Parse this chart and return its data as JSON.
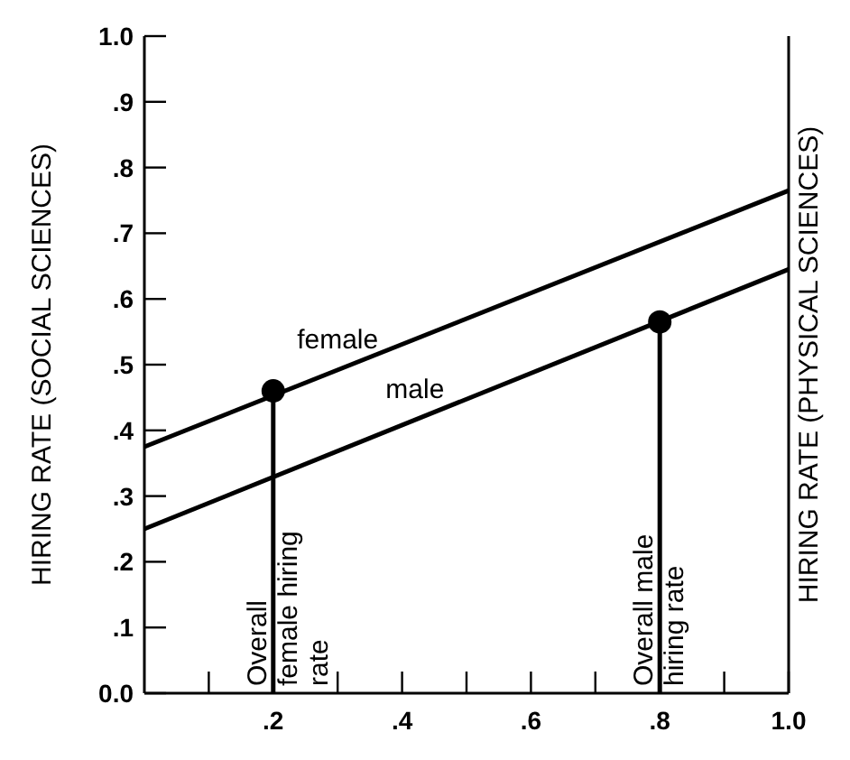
{
  "chart_data": {
    "type": "line",
    "ylabel": "HIRING RATE (SOCIAL SCIENCES)",
    "y2label": "HIRING RATE (PHYSICAL SCIENCES)",
    "xlim": [
      0,
      1
    ],
    "ylim": [
      0,
      1
    ],
    "xticks": [
      {
        "value": 0.1,
        "label": null
      },
      {
        "value": 0.2,
        "label": ".2"
      },
      {
        "value": 0.3,
        "label": null
      },
      {
        "value": 0.4,
        "label": ".4"
      },
      {
        "value": 0.5,
        "label": null
      },
      {
        "value": 0.6,
        "label": ".6"
      },
      {
        "value": 0.7,
        "label": null
      },
      {
        "value": 0.8,
        "label": ".8"
      },
      {
        "value": 0.9,
        "label": null
      },
      {
        "value": 1,
        "label": "1.0"
      }
    ],
    "yticks": [
      {
        "value": 0,
        "label": "0.0"
      },
      {
        "value": 0.1,
        "label": ".1"
      },
      {
        "value": 0.2,
        "label": ".2"
      },
      {
        "value": 0.3,
        "label": ".3"
      },
      {
        "value": 0.4,
        "label": ".4"
      },
      {
        "value": 0.5,
        "label": ".5"
      },
      {
        "value": 0.6,
        "label": ".6"
      },
      {
        "value": 0.7,
        "label": ".7"
      },
      {
        "value": 0.8,
        "label": ".8"
      },
      {
        "value": 0.9,
        "label": ".9"
      },
      {
        "value": 1,
        "label": "1.0"
      }
    ],
    "series": [
      {
        "name": "female",
        "color": "#000000",
        "x": [
          0,
          1
        ],
        "values": [
          0.375,
          0.765
        ]
      },
      {
        "name": "male",
        "color": "#000000",
        "x": [
          0,
          1
        ],
        "values": [
          0.25,
          0.645
        ]
      },
      {
        "type": "line",
        "color": "#000000",
        "x": [
          0.2,
          0.2
        ],
        "values": [
          0,
          0.46
        ]
      },
      {
        "type": "line",
        "color": "#000000",
        "x": [
          0.8,
          0.8
        ],
        "values": [
          0,
          0.565
        ]
      },
      {
        "type": "scatter",
        "color": "#000000",
        "marker": "circle",
        "x": [
          0.2,
          0.8
        ],
        "values": [
          0.46,
          0.565
        ]
      }
    ],
    "annotations": [
      {
        "text": "Overall female hiring rate",
        "x": 0.2,
        "y": 0
      },
      {
        "text": "Overall male hiring rate",
        "x": 0.8,
        "y": 0
      }
    ],
    "grid": false
  }
}
